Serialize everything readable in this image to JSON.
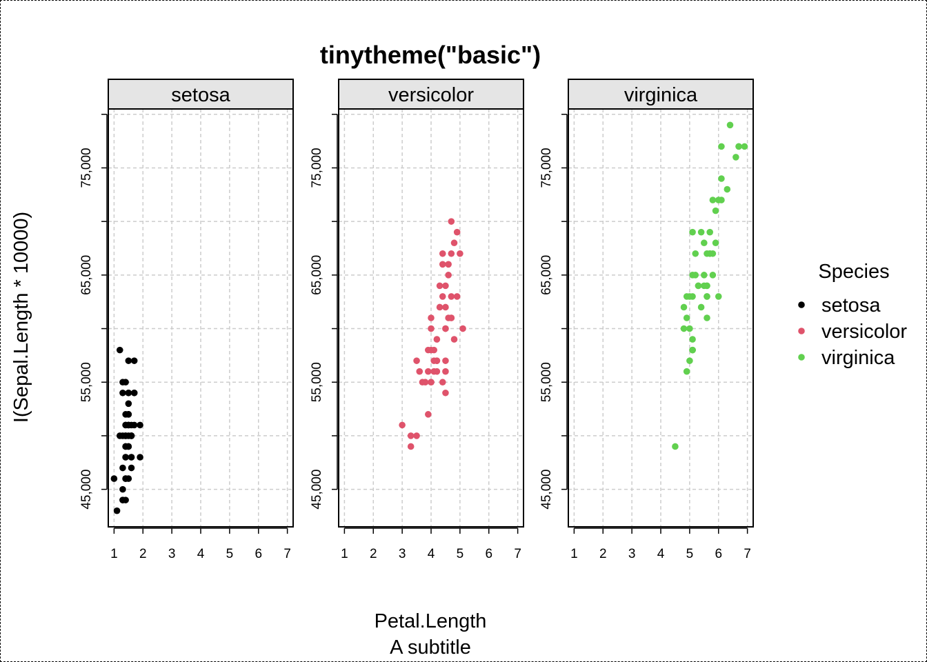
{
  "chart_data": {
    "type": "scatter",
    "title": "tinytheme(\"basic\")",
    "subtitle": "A subtitle",
    "xlabel": "Petal.Length",
    "ylabel": "I(Sepal.Length * 10000)",
    "xlim": [
      0.8,
      7.2
    ],
    "ylim": [
      41500,
      80500
    ],
    "x_ticks": [
      1,
      2,
      3,
      4,
      5,
      6,
      7
    ],
    "x_tick_labels": [
      "1",
      "2",
      "3",
      "4",
      "5",
      "6",
      "7"
    ],
    "y_ticks": [
      45000,
      50000,
      55000,
      60000,
      65000,
      70000,
      75000,
      80000
    ],
    "y_tick_labels": [
      "45,000",
      "55,000",
      "65,000",
      "75,000"
    ],
    "y_labeled_ticks": [
      45000,
      55000,
      65000,
      75000
    ],
    "grid": true,
    "legend_title": "Species",
    "legend_position": "right",
    "facets": [
      "setosa",
      "versicolor",
      "virginica"
    ],
    "series": [
      {
        "name": "setosa",
        "color": "#000000",
        "x": [
          1.4,
          1.4,
          1.3,
          1.5,
          1.4,
          1.7,
          1.4,
          1.5,
          1.4,
          1.5,
          1.5,
          1.6,
          1.4,
          1.1,
          1.2,
          1.5,
          1.3,
          1.4,
          1.7,
          1.5,
          1.7,
          1.5,
          1.0,
          1.7,
          1.9,
          1.6,
          1.6,
          1.5,
          1.4,
          1.6,
          1.6,
          1.5,
          1.5,
          1.4,
          1.5,
          1.2,
          1.3,
          1.4,
          1.3,
          1.5,
          1.3,
          1.3,
          1.3,
          1.6,
          1.9,
          1.4,
          1.6,
          1.4,
          1.5,
          1.4
        ],
        "y": [
          51000,
          49000,
          47000,
          46000,
          50000,
          54000,
          46000,
          50000,
          44000,
          49000,
          54000,
          48000,
          48000,
          43000,
          58000,
          57000,
          54000,
          51000,
          57000,
          51000,
          54000,
          51000,
          46000,
          51000,
          48000,
          50000,
          50000,
          52000,
          52000,
          47000,
          48000,
          54000,
          52000,
          55000,
          49000,
          50000,
          55000,
          49000,
          44000,
          51000,
          50000,
          45000,
          44000,
          50000,
          51000,
          48000,
          51000,
          46000,
          53000,
          50000
        ]
      },
      {
        "name": "versicolor",
        "color": "#DF536B",
        "x": [
          4.7,
          4.5,
          4.9,
          4.0,
          4.6,
          4.5,
          4.7,
          3.3,
          4.6,
          3.9,
          3.5,
          4.2,
          4.0,
          4.7,
          3.6,
          4.4,
          4.5,
          4.1,
          4.5,
          3.9,
          4.8,
          4.0,
          4.9,
          4.7,
          4.3,
          4.4,
          4.8,
          5.0,
          4.5,
          3.5,
          3.8,
          3.7,
          3.9,
          5.1,
          4.5,
          4.5,
          4.7,
          4.4,
          4.1,
          4.0,
          4.4,
          4.6,
          4.0,
          3.3,
          4.2,
          4.2,
          4.2,
          4.3,
          3.0,
          4.1
        ],
        "y": [
          70000,
          64000,
          69000,
          55000,
          65000,
          57000,
          63000,
          49000,
          66000,
          52000,
          50000,
          59000,
          60000,
          61000,
          56000,
          67000,
          56000,
          58000,
          62000,
          56000,
          59000,
          61000,
          63000,
          61000,
          64000,
          66000,
          68000,
          67000,
          60000,
          57000,
          55000,
          55000,
          58000,
          60000,
          54000,
          60000,
          67000,
          63000,
          56000,
          55000,
          55000,
          61000,
          58000,
          50000,
          56000,
          57000,
          57000,
          62000,
          51000,
          57000
        ]
      },
      {
        "name": "virginica",
        "color": "#61D04F",
        "x": [
          6.0,
          5.1,
          5.9,
          5.6,
          5.8,
          6.6,
          4.5,
          6.3,
          5.8,
          6.1,
          5.1,
          5.3,
          5.5,
          5.0,
          5.1,
          5.3,
          5.5,
          6.7,
          6.9,
          5.0,
          5.7,
          4.9,
          6.7,
          4.9,
          5.7,
          6.0,
          4.8,
          4.9,
          5.6,
          5.8,
          6.1,
          6.4,
          5.6,
          5.1,
          5.6,
          6.1,
          5.6,
          5.5,
          4.8,
          5.4,
          5.6,
          5.1,
          5.1,
          5.9,
          5.7,
          5.2,
          5.0,
          5.2,
          5.4,
          5.1
        ],
        "y": [
          63000,
          58000,
          71000,
          63000,
          65000,
          76000,
          49000,
          73000,
          67000,
          72000,
          65000,
          64000,
          68000,
          57000,
          58000,
          64000,
          65000,
          77000,
          77000,
          60000,
          69000,
          56000,
          77000,
          63000,
          67000,
          72000,
          62000,
          61000,
          64000,
          72000,
          74000,
          79000,
          64000,
          63000,
          61000,
          77000,
          63000,
          64000,
          60000,
          69000,
          67000,
          69000,
          58000,
          68000,
          67000,
          67000,
          63000,
          65000,
          62000,
          59000
        ]
      }
    ]
  }
}
